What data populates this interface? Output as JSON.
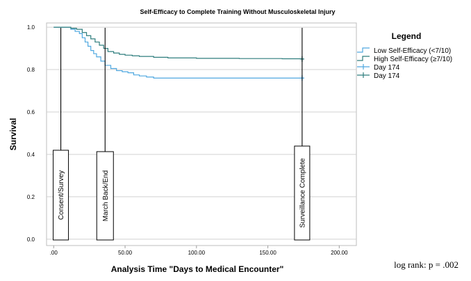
{
  "chart_data": {
    "type": "line",
    "subtype": "kaplan-meier survival",
    "title": "Self-Efficacy to Complete Training Without Musculoskeletal Injury",
    "xlabel": "Analysis Time \"Days to Medical Encounter\"",
    "ylabel": "Survival",
    "xlim": [
      -5,
      212
    ],
    "ylim": [
      -0.03,
      1.02
    ],
    "x_ticks": [
      0,
      50,
      100,
      150,
      200
    ],
    "x_tick_labels": [
      ".00",
      "50.00",
      "100.00",
      "150.00",
      "200.00"
    ],
    "y_ticks": [
      0.0,
      0.2,
      0.4,
      0.6,
      0.8,
      1.0
    ],
    "y_tick_labels": [
      "0.0",
      "0.2",
      "0.4",
      "0.6",
      "0.8",
      "1.0"
    ],
    "grid": "horizontal",
    "series": [
      {
        "name": "Low Self-Efficacy (<7/10)",
        "color": "#4fa8e0",
        "x": [
          0,
          8,
          12,
          15,
          18,
          20,
          22,
          24,
          26,
          28,
          30,
          33,
          36,
          40,
          44,
          48,
          52,
          56,
          60,
          65,
          70,
          80,
          100,
          130,
          160,
          174
        ],
        "y": [
          1.0,
          1.0,
          0.99,
          0.98,
          0.97,
          0.95,
          0.93,
          0.91,
          0.89,
          0.875,
          0.86,
          0.84,
          0.82,
          0.805,
          0.795,
          0.79,
          0.785,
          0.775,
          0.77,
          0.765,
          0.76,
          0.76,
          0.76,
          0.76,
          0.76,
          0.76
        ]
      },
      {
        "name": "High Self-Efficacy (≥7/10)",
        "color": "#2e7d7d",
        "x": [
          0,
          5,
          12,
          16,
          20,
          23,
          26,
          29,
          32,
          35,
          38,
          42,
          46,
          50,
          55,
          60,
          70,
          80,
          100,
          130,
          160,
          174
        ],
        "y": [
          1.0,
          1.0,
          0.995,
          0.99,
          0.975,
          0.96,
          0.945,
          0.93,
          0.915,
          0.9,
          0.885,
          0.878,
          0.872,
          0.868,
          0.865,
          0.862,
          0.858,
          0.855,
          0.853,
          0.852,
          0.851,
          0.85
        ]
      }
    ],
    "censor_markers": [
      {
        "name": "Day 174",
        "x": 174,
        "y": 0.76,
        "color": "#4fa8e0"
      },
      {
        "name": "Day 174",
        "x": 174,
        "y": 0.85,
        "color": "#2e7d7d"
      }
    ],
    "annotations": [
      {
        "label": "Consent/Survey",
        "x": 5
      },
      {
        "label": "March Back/End",
        "x": 36
      },
      {
        "label": "Surveillance Complete",
        "x": 174
      }
    ],
    "legend": {
      "title": "Legend",
      "position": "right",
      "entries": [
        {
          "label": "Low Self-Efficacy (<7/10)",
          "kind": "step",
          "color": "#4fa8e0"
        },
        {
          "label": "High Self-Efficacy (≥7/10)",
          "kind": "step",
          "color": "#2e7d7d"
        },
        {
          "label": "Day 174",
          "kind": "cross",
          "color": "#4fa8e0"
        },
        {
          "label": "Day 174",
          "kind": "cross",
          "color": "#2e7d7d"
        }
      ]
    },
    "note": "log rank: p = .002"
  }
}
